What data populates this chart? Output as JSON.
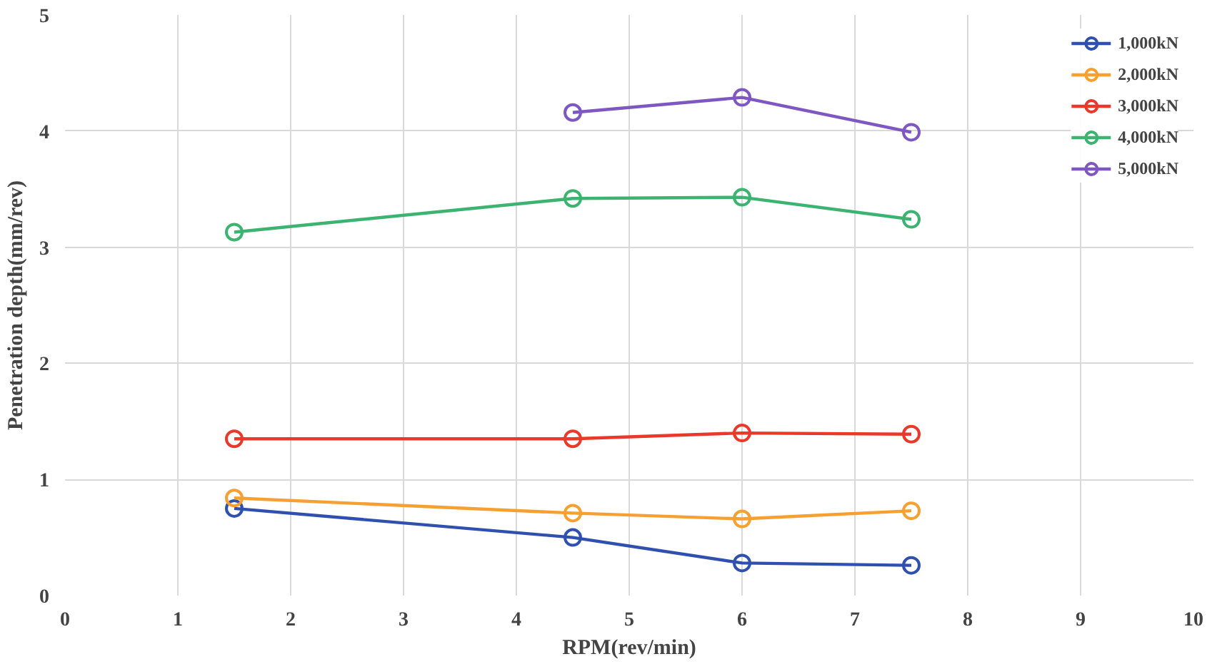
{
  "chart_data": {
    "type": "line",
    "xlabel": "RPM(rev/min)",
    "ylabel": "Penetration depth(mm/rev)",
    "xlim": [
      0,
      10
    ],
    "xticks": [
      0,
      1,
      2,
      3,
      4,
      5,
      6,
      7,
      8,
      9,
      10
    ],
    "ylim": [
      0,
      5
    ],
    "yticks": [
      0,
      1,
      2,
      3,
      4,
      5
    ],
    "grid": true,
    "legend": "top right",
    "marker": "circle",
    "line_style": "solid",
    "series": [
      {
        "name": "1,000kN",
        "color": "#3050b0",
        "x": [
          1.5,
          4.5,
          6,
          7.5
        ],
        "values": [
          0.75,
          0.5,
          0.28,
          0.26
        ]
      },
      {
        "name": "2,000kN",
        "color": "#f5a030",
        "x": [
          1.5,
          4.5,
          6,
          7.5
        ],
        "values": [
          0.84,
          0.71,
          0.66,
          0.73
        ]
      },
      {
        "name": "3,000kN",
        "color": "#e8392a",
        "x": [
          1.5,
          4.5,
          6,
          7.5
        ],
        "values": [
          1.35,
          1.35,
          1.4,
          1.39
        ]
      },
      {
        "name": "4,000kN",
        "color": "#3cb371",
        "x": [
          1.5,
          4.5,
          6,
          7.5
        ],
        "values": [
          3.13,
          3.42,
          3.43,
          3.24
        ]
      },
      {
        "name": "5,000kN",
        "color": "#7e57c2",
        "x": [
          4.5,
          6,
          7.5
        ],
        "values": [
          4.16,
          4.29,
          3.99
        ]
      }
    ]
  }
}
